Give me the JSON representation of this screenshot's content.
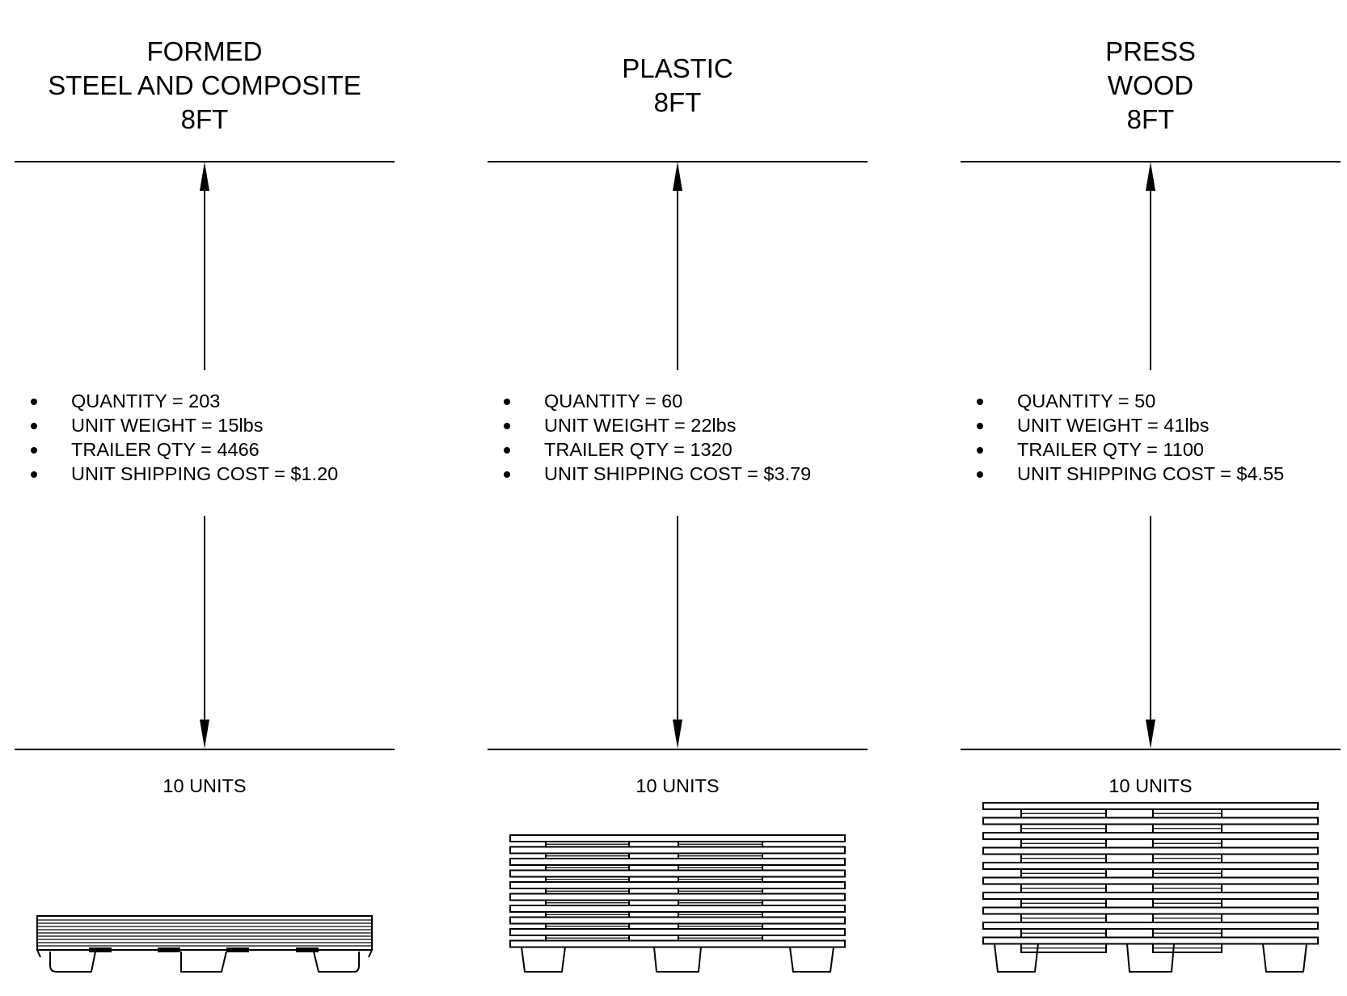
{
  "columns": [
    {
      "title_lines": [
        "FORMED",
        "STEEL AND COMPOSITE",
        "8FT"
      ],
      "specs": [
        "QUANTITY = 203",
        "UNIT WEIGHT = 15lbs",
        "TRAILER QTY = 4466",
        "UNIT SHIPPING COST = $1.20"
      ],
      "units_label": "10 UNITS",
      "stack_count": 10
    },
    {
      "title_lines": [
        "PLASTIC",
        "8FT"
      ],
      "specs": [
        "QUANTITY = 60",
        "UNIT WEIGHT = 22lbs",
        "TRAILER QTY = 1320",
        "UNIT SHIPPING COST = $3.79"
      ],
      "units_label": "10 UNITS",
      "stack_count": 10
    },
    {
      "title_lines": [
        "PRESS",
        "WOOD",
        "8FT"
      ],
      "specs": [
        "QUANTITY = 50",
        "UNIT WEIGHT = 41lbs",
        "TRAILER QTY = 1100",
        "UNIT SHIPPING COST = $4.55"
      ],
      "units_label": "10 UNITS",
      "stack_count": 10
    }
  ]
}
